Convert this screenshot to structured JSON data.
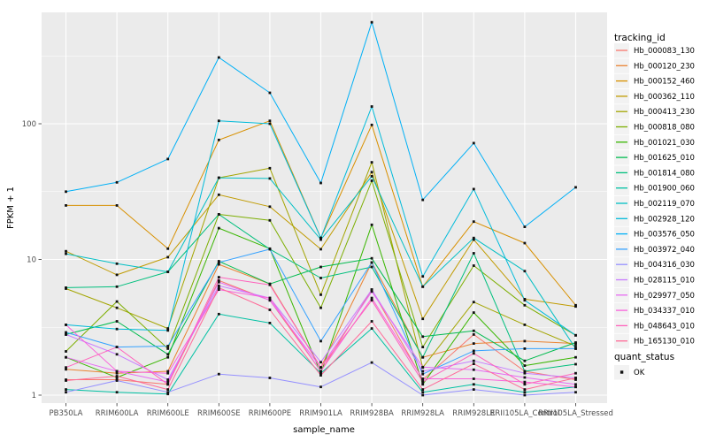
{
  "chart_data": {
    "type": "line",
    "title": "",
    "xlabel": "sample_name",
    "ylabel": "FPKM + 1",
    "y_scale": "log10",
    "y_major_ticks": [
      1,
      10,
      100
    ],
    "y_minor_gridlines": [
      3.162,
      31.62,
      316.2
    ],
    "ylim": [
      0.9,
      660
    ],
    "grid": "white major+minor on gray panel",
    "legend_position": "right",
    "point_shape": "square",
    "point_color": "#111111",
    "categories": [
      "PB350LA",
      "RRIM600LA",
      "RRIM600LE",
      "RRIM600SE",
      "RRIM600PE",
      "RRIM901LA",
      "RRIM928BA",
      "RRIM928LA",
      "RRIM928LE",
      "RRII105LA_Control",
      "RRII105LA_Stressed"
    ],
    "series": [
      {
        "name": "Hb_000083_130",
        "color": "#F8766D",
        "values": [
          1.3,
          1.3,
          1.2,
          7.0,
          5.0,
          1.5,
          6.0,
          1.3,
          2.8,
          1.5,
          1.3
        ]
      },
      {
        "name": "Hb_000120_230",
        "color": "#EA8331",
        "values": [
          1.55,
          1.45,
          1.5,
          9.2,
          6.6,
          1.6,
          9.5,
          1.9,
          2.4,
          2.5,
          2.4
        ]
      },
      {
        "name": "Hb_000152_460",
        "color": "#D89000",
        "values": [
          25,
          25,
          12,
          76,
          105,
          14.4,
          98,
          6.3,
          19,
          13.2,
          4.6
        ]
      },
      {
        "name": "Hb_000362_110",
        "color": "#C09B00",
        "values": [
          11.5,
          7.7,
          10.4,
          30,
          24.5,
          11.9,
          44,
          3.65,
          14,
          5.1,
          4.5
        ]
      },
      {
        "name": "Hb_000413_230",
        "color": "#A3A500",
        "values": [
          6.1,
          4.4,
          3.1,
          40,
          47,
          5.5,
          52,
          1.6,
          4.85,
          3.3,
          2.3
        ]
      },
      {
        "name": "Hb_000818_080",
        "color": "#7CAE00",
        "values": [
          2.1,
          4.9,
          2.2,
          21.5,
          19.4,
          4.4,
          38,
          2.26,
          9.0,
          4.6,
          2.76
        ]
      },
      {
        "name": "Hb_001021_030",
        "color": "#39B600",
        "values": [
          1.9,
          1.35,
          1.9,
          17,
          12,
          1.45,
          18,
          1.2,
          4.06,
          1.65,
          1.9
        ]
      },
      {
        "name": "Hb_001625_010",
        "color": "#00BB4E",
        "values": [
          2.8,
          3.5,
          2.0,
          9.7,
          6.6,
          8.8,
          10.2,
          2.7,
          2.98,
          1.79,
          2.44
        ]
      },
      {
        "name": "Hb_001814_080",
        "color": "#00BF7D",
        "values": [
          6.2,
          6.3,
          8.1,
          21.5,
          11.9,
          7.3,
          8.8,
          1.9,
          11.1,
          1.5,
          1.69
        ]
      },
      {
        "name": "Hb_001900_060",
        "color": "#00C1A3",
        "values": [
          1.1,
          1.05,
          1.02,
          3.96,
          3.4,
          1.45,
          3.1,
          1.05,
          1.2,
          1.05,
          1.15
        ]
      },
      {
        "name": "Hb_002119_070",
        "color": "#00BFC4",
        "values": [
          11,
          9.3,
          8.1,
          40,
          39.5,
          14.0,
          41,
          6.3,
          14.4,
          8.2,
          2.2
        ]
      },
      {
        "name": "Hb_002928_120",
        "color": "#00BBDA",
        "values": [
          3.3,
          3.07,
          3.0,
          105,
          100,
          14.4,
          134,
          7.5,
          33,
          5.0,
          2.76
        ]
      },
      {
        "name": "Hb_003576_050",
        "color": "#00B0F6",
        "values": [
          31.6,
          37,
          55,
          308,
          169,
          36.6,
          560,
          27.5,
          72,
          17.4,
          34
        ]
      },
      {
        "name": "Hb_003972_040",
        "color": "#35A2FF",
        "values": [
          2.9,
          2.26,
          2.3,
          9.5,
          11.9,
          2.5,
          9.5,
          1.43,
          2.12,
          2.2,
          2.2
        ]
      },
      {
        "name": "Hb_004316_030",
        "color": "#9590FF",
        "values": [
          1.05,
          1.28,
          1.05,
          1.43,
          1.34,
          1.15,
          1.74,
          1.0,
          1.1,
          1.0,
          1.05
        ]
      },
      {
        "name": "Hb_028115_010",
        "color": "#C77CFF",
        "values": [
          2.8,
          2.0,
          1.3,
          6.4,
          5.2,
          1.75,
          6.0,
          1.5,
          1.79,
          1.45,
          1.34
        ]
      },
      {
        "name": "Hb_029977_050",
        "color": "#E76BF3",
        "values": [
          1.9,
          1.5,
          1.25,
          6.8,
          5.0,
          1.6,
          5.8,
          1.61,
          1.54,
          1.35,
          1.2
        ]
      },
      {
        "name": "Hb_034337_010",
        "color": "#FA62DB",
        "values": [
          3.3,
          1.5,
          1.45,
          6.0,
          5.2,
          1.5,
          5.2,
          1.32,
          1.32,
          1.25,
          1.15
        ]
      },
      {
        "name": "Hb_048643_010",
        "color": "#FF62BC",
        "values": [
          1.6,
          2.26,
          1.2,
          7.4,
          6.5,
          1.6,
          5.0,
          1.25,
          2.03,
          1.2,
          1.45
        ]
      },
      {
        "name": "Hb_165130_010",
        "color": "#FF6A98",
        "values": [
          1.28,
          1.38,
          1.1,
          6.2,
          4.25,
          1.4,
          3.5,
          1.1,
          1.7,
          1.1,
          1.34
        ]
      }
    ]
  },
  "legend": {
    "tracking_title": "tracking_id",
    "quant_title": "quant_status",
    "quant_items": [
      {
        "label": "OK"
      }
    ]
  },
  "colors": {
    "panel_bg": "#EBEBEB",
    "grid": "#FFFFFF",
    "axis_text": "#4d4d4d",
    "tick_mark": "#333333",
    "legend_key_bg": "#F2F2F2",
    "point": "#111111"
  }
}
